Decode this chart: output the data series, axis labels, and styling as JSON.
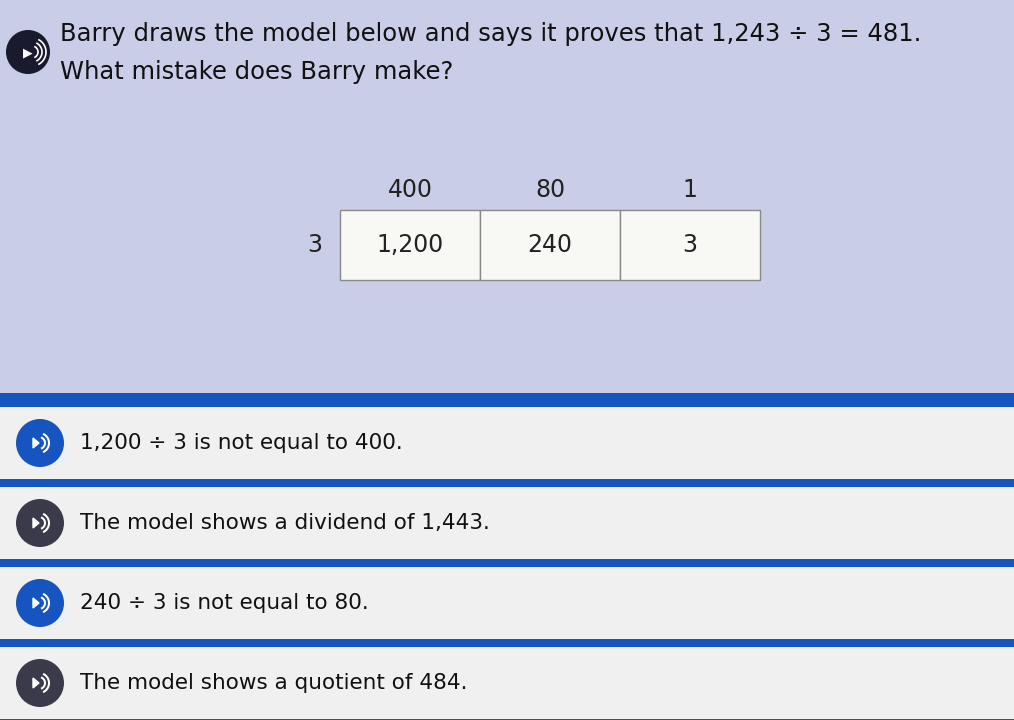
{
  "title_line1": "Barry draws the model below and says it proves that 1,243 ÷ 3 = 481.",
  "title_line2": "What mistake does Barry make?",
  "header_bg": "#c9cde8",
  "middle_bg": "#d8ddf0",
  "options_bg": "#f0f0f0",
  "blue_bar_color": "#1655c0",
  "quotient_labels": [
    "400",
    "80",
    "1"
  ],
  "dividend_labels": [
    "1,200",
    "240",
    "3"
  ],
  "divisor": "3",
  "options": [
    "1,200 ÷ 3 is not equal to 400.",
    "The model shows a dividend of 1,443.",
    "240 ÷ 3 is not equal to 80.",
    "The model shows a quotient of 484."
  ],
  "icon_dark": "#3a3a4a",
  "icon_blue": "#1655c0",
  "fig_width": 10.14,
  "fig_height": 7.2,
  "dpi": 100
}
